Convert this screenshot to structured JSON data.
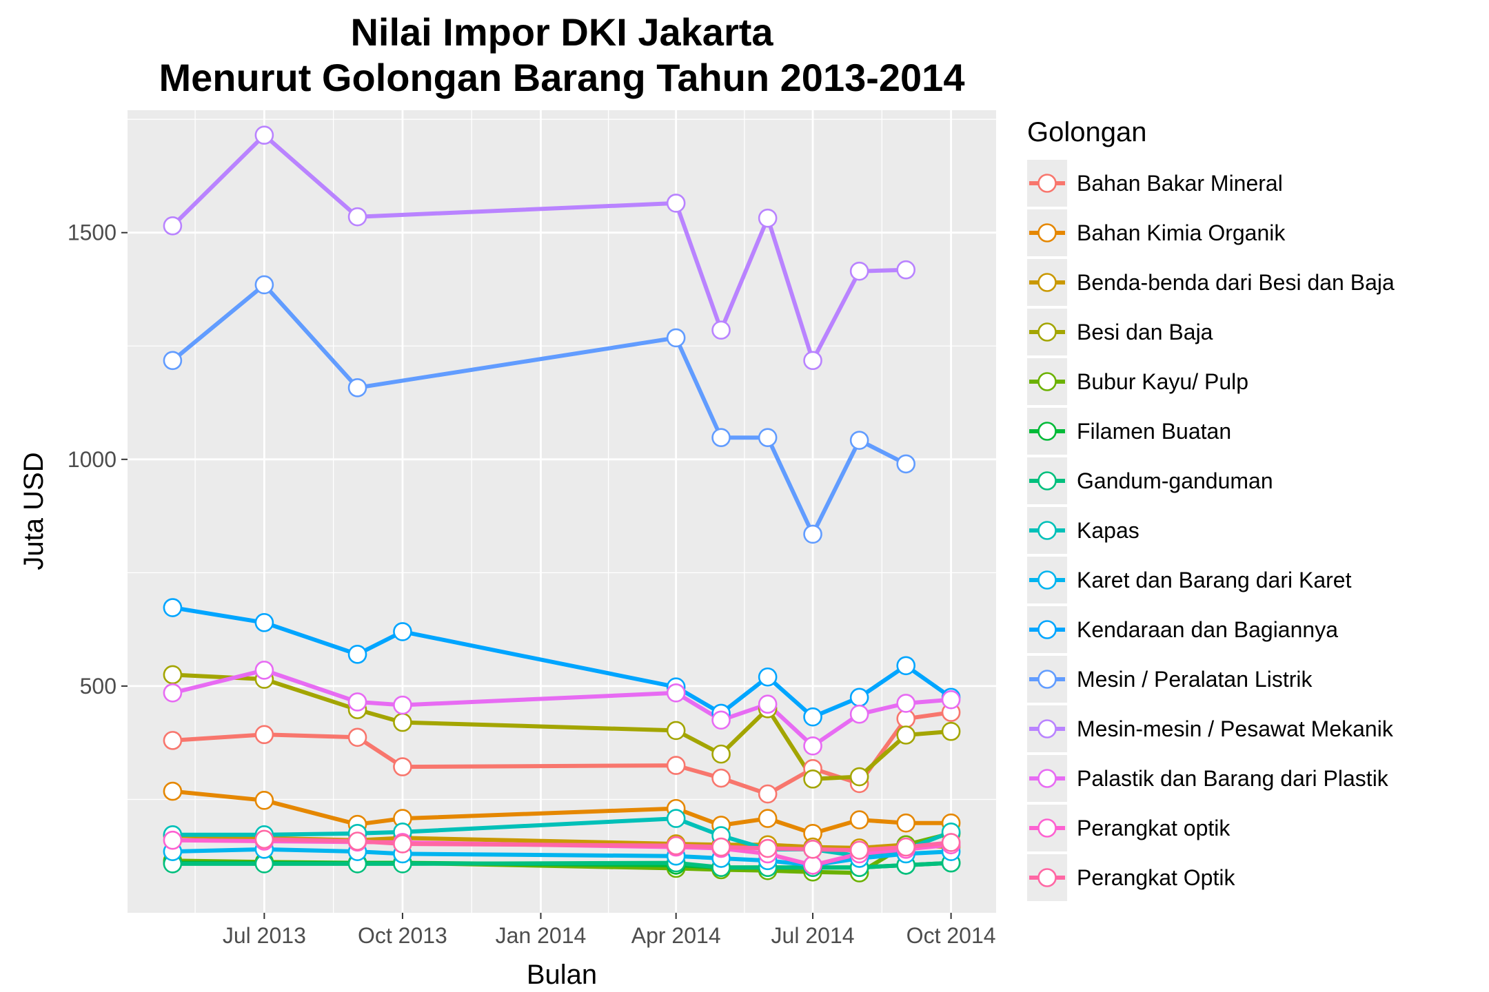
{
  "chart_data": {
    "type": "line",
    "title": [
      "Nilai Impor DKI Jakarta",
      "Menurut Golongan Barang Tahun 2013-2014"
    ],
    "xlabel": "Bulan",
    "ylabel": "Juta USD",
    "legend_title": "Golongan",
    "legend_position": "right",
    "grid": true,
    "xlim": [
      "2013-04-01",
      "2014-10-31"
    ],
    "ylim": [
      0,
      1770
    ],
    "y_ticks": [
      500,
      1000,
      1500
    ],
    "x_ticks": [
      {
        "date": "2013-07-01",
        "label": "Jul 2013"
      },
      {
        "date": "2013-10-01",
        "label": "Oct 2013"
      },
      {
        "date": "2014-01-01",
        "label": "Jan 2014"
      },
      {
        "date": "2014-04-01",
        "label": "Apr 2014"
      },
      {
        "date": "2014-07-01",
        "label": "Jul 2014"
      },
      {
        "date": "2014-10-01",
        "label": "Oct 2014"
      }
    ],
    "series": [
      {
        "name": "Bahan Bakar Mineral",
        "color": "#F8766D",
        "points": [
          [
            "2013-05-01",
            380
          ],
          [
            "2013-07-01",
            393
          ],
          [
            "2013-09-01",
            387
          ],
          [
            "2013-10-01",
            322
          ],
          [
            "2014-04-01",
            325
          ],
          [
            "2014-05-01",
            297
          ],
          [
            "2014-06-01",
            262
          ],
          [
            "2014-07-01",
            318
          ],
          [
            "2014-08-01",
            285
          ],
          [
            "2014-09-01",
            428
          ],
          [
            "2014-10-01",
            442
          ]
        ]
      },
      {
        "name": "Bahan Kimia Organik",
        "color": "#E58700",
        "points": [
          [
            "2013-05-01",
            268
          ],
          [
            "2013-07-01",
            248
          ],
          [
            "2013-09-01",
            195
          ],
          [
            "2013-10-01",
            208
          ],
          [
            "2014-04-01",
            230
          ],
          [
            "2014-05-01",
            193
          ],
          [
            "2014-06-01",
            208
          ],
          [
            "2014-07-01",
            175
          ],
          [
            "2014-08-01",
            205
          ],
          [
            "2014-09-01",
            198
          ],
          [
            "2014-10-01",
            198
          ]
        ]
      },
      {
        "name": "Benda-benda dari Besi dan Baja",
        "color": "#C99800",
        "points": [
          [
            "2013-05-01",
            170
          ],
          [
            "2013-07-01",
            165
          ],
          [
            "2013-09-01",
            160
          ],
          [
            "2013-10-01",
            165
          ],
          [
            "2014-04-01",
            152
          ],
          [
            "2014-05-01",
            150
          ],
          [
            "2014-06-01",
            150
          ],
          [
            "2014-07-01",
            145
          ],
          [
            "2014-08-01",
            143
          ],
          [
            "2014-09-01",
            150
          ],
          [
            "2014-10-01",
            145
          ]
        ]
      },
      {
        "name": "Besi dan Baja",
        "color": "#A3A500",
        "points": [
          [
            "2013-05-01",
            525
          ],
          [
            "2013-07-01",
            515
          ],
          [
            "2013-09-01",
            448
          ],
          [
            "2013-10-01",
            420
          ],
          [
            "2014-04-01",
            402
          ],
          [
            "2014-05-01",
            350
          ],
          [
            "2014-06-01",
            450
          ],
          [
            "2014-07-01",
            295
          ],
          [
            "2014-08-01",
            300
          ],
          [
            "2014-09-01",
            392
          ],
          [
            "2014-10-01",
            400
          ]
        ]
      },
      {
        "name": "Bubur Kayu/ Pulp",
        "color": "#6BB100",
        "points": [
          [
            "2013-05-01",
            115
          ],
          [
            "2013-07-01",
            112
          ],
          [
            "2013-09-01",
            110
          ],
          [
            "2013-10-01",
            110
          ],
          [
            "2014-04-01",
            98
          ],
          [
            "2014-05-01",
            95
          ],
          [
            "2014-06-01",
            93
          ],
          [
            "2014-07-01",
            90
          ],
          [
            "2014-08-01",
            88
          ],
          [
            "2014-09-01",
            150
          ],
          [
            "2014-10-01",
            175
          ]
        ]
      },
      {
        "name": "Filamen Buatan",
        "color": "#00BA38",
        "points": [
          [
            "2013-05-01",
            110
          ],
          [
            "2013-07-01",
            110
          ],
          [
            "2013-09-01",
            110
          ],
          [
            "2013-10-01",
            110
          ],
          [
            "2014-04-01",
            105
          ],
          [
            "2014-05-01",
            100
          ],
          [
            "2014-06-01",
            100
          ],
          [
            "2014-07-01",
            100
          ],
          [
            "2014-08-01",
            100
          ],
          [
            "2014-09-01",
            105
          ],
          [
            "2014-10-01",
            110
          ]
        ]
      },
      {
        "name": "Gandum-ganduman",
        "color": "#00BF7D",
        "points": [
          [
            "2013-05-01",
            108
          ],
          [
            "2013-07-01",
            108
          ],
          [
            "2013-09-01",
            108
          ],
          [
            "2013-10-01",
            108
          ],
          [
            "2014-04-01",
            110
          ],
          [
            "2014-05-01",
            100
          ],
          [
            "2014-06-01",
            100
          ],
          [
            "2014-07-01",
            100
          ],
          [
            "2014-08-01",
            100
          ],
          [
            "2014-09-01",
            105
          ],
          [
            "2014-10-01",
            110
          ]
        ]
      },
      {
        "name": "Kapas",
        "color": "#00C0B8",
        "points": [
          [
            "2013-05-01",
            172
          ],
          [
            "2013-07-01",
            172
          ],
          [
            "2013-09-01",
            175
          ],
          [
            "2013-10-01",
            178
          ],
          [
            "2014-04-01",
            208
          ],
          [
            "2014-05-01",
            170
          ],
          [
            "2014-06-01",
            140
          ],
          [
            "2014-07-01",
            140
          ],
          [
            "2014-08-01",
            125
          ],
          [
            "2014-09-01",
            140
          ],
          [
            "2014-10-01",
            178
          ]
        ]
      },
      {
        "name": "Karet dan Barang dari Karet",
        "color": "#00B4EF",
        "points": [
          [
            "2013-05-01",
            135
          ],
          [
            "2013-07-01",
            140
          ],
          [
            "2013-09-01",
            135
          ],
          [
            "2013-10-01",
            130
          ],
          [
            "2014-04-01",
            125
          ],
          [
            "2014-05-01",
            120
          ],
          [
            "2014-06-01",
            115
          ],
          [
            "2014-07-01",
            105
          ],
          [
            "2014-08-01",
            120
          ],
          [
            "2014-09-01",
            130
          ],
          [
            "2014-10-01",
            135
          ]
        ]
      },
      {
        "name": "Kendaraan dan Bagiannya",
        "color": "#00A5FF",
        "points": [
          [
            "2013-05-01",
            673
          ],
          [
            "2013-07-01",
            640
          ],
          [
            "2013-09-01",
            570
          ],
          [
            "2013-10-01",
            620
          ],
          [
            "2014-04-01",
            498
          ],
          [
            "2014-05-01",
            440
          ],
          [
            "2014-06-01",
            520
          ],
          [
            "2014-07-01",
            432
          ],
          [
            "2014-08-01",
            475
          ],
          [
            "2014-09-01",
            545
          ],
          [
            "2014-10-01",
            475
          ]
        ]
      },
      {
        "name": "Mesin / Peralatan Listrik",
        "color": "#619CFF",
        "points": [
          [
            "2013-05-01",
            1218
          ],
          [
            "2013-07-01",
            1385
          ],
          [
            "2013-09-01",
            1158
          ],
          [
            "2014-04-01",
            1268
          ],
          [
            "2014-05-01",
            1048
          ],
          [
            "2014-06-01",
            1048
          ],
          [
            "2014-07-01",
            835
          ],
          [
            "2014-08-01",
            1042
          ],
          [
            "2014-09-01",
            990
          ]
        ]
      },
      {
        "name": "Mesin-mesin / Pesawat Mekanik",
        "color": "#B983FF",
        "points": [
          [
            "2013-05-01",
            1515
          ],
          [
            "2013-07-01",
            1715
          ],
          [
            "2013-09-01",
            1535
          ],
          [
            "2014-04-01",
            1565
          ],
          [
            "2014-05-01",
            1285
          ],
          [
            "2014-06-01",
            1532
          ],
          [
            "2014-07-01",
            1218
          ],
          [
            "2014-08-01",
            1415
          ],
          [
            "2014-09-01",
            1418
          ]
        ]
      },
      {
        "name": "Palastik dan Barang dari Plastik",
        "color": "#E76BF3",
        "points": [
          [
            "2013-05-01",
            485
          ],
          [
            "2013-07-01",
            535
          ],
          [
            "2013-09-01",
            465
          ],
          [
            "2013-10-01",
            458
          ],
          [
            "2014-04-01",
            485
          ],
          [
            "2014-05-01",
            425
          ],
          [
            "2014-06-01",
            460
          ],
          [
            "2014-07-01",
            368
          ],
          [
            "2014-08-01",
            438
          ],
          [
            "2014-09-01",
            462
          ],
          [
            "2014-10-01",
            470
          ]
        ]
      },
      {
        "name": "Perangkat optik",
        "color": "#FD61D1",
        "points": [
          [
            "2013-05-01",
            160
          ],
          [
            "2013-07-01",
            158
          ],
          [
            "2013-09-01",
            156
          ],
          [
            "2013-10-01",
            155
          ],
          [
            "2014-04-01",
            145
          ],
          [
            "2014-05-01",
            142
          ],
          [
            "2014-06-01",
            130
          ],
          [
            "2014-07-01",
            105
          ],
          [
            "2014-08-01",
            130
          ],
          [
            "2014-09-01",
            140
          ],
          [
            "2014-10-01",
            150
          ]
        ]
      },
      {
        "name": "Perangkat Optik",
        "color": "#FF67A4",
        "points": [
          [
            "2013-07-01",
            162
          ],
          [
            "2013-09-01",
            158
          ],
          [
            "2013-10-01",
            152
          ],
          [
            "2014-04-01",
            148
          ],
          [
            "2014-05-01",
            145
          ],
          [
            "2014-06-01",
            142
          ],
          [
            "2014-07-01",
            140
          ],
          [
            "2014-08-01",
            138
          ],
          [
            "2014-09-01",
            145
          ],
          [
            "2014-10-01",
            155
          ]
        ]
      }
    ]
  }
}
